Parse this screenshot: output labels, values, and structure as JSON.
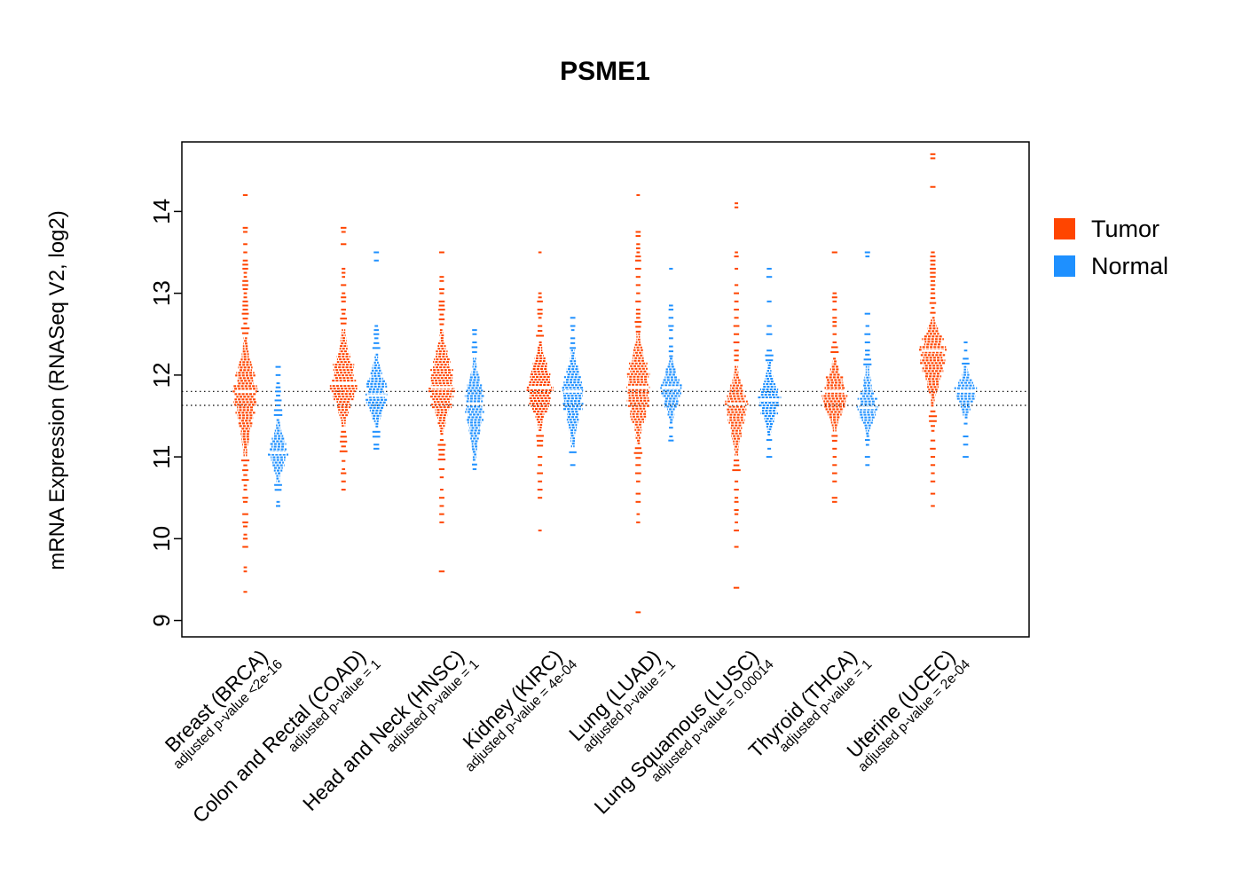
{
  "chart_data": {
    "type": "beeswarm-violin",
    "title": "PSME1",
    "ylabel": "mRNA Expression (RNASeq V2, log2)",
    "ylim": [
      8.8,
      14.85
    ],
    "yticks": [
      9,
      10,
      11,
      12,
      13,
      14
    ],
    "grid": false,
    "legend_position": "right",
    "legend_items": [
      {
        "label": "Tumor",
        "color": "#FF4500"
      },
      {
        "label": "Normal",
        "color": "#1E90FF"
      }
    ],
    "reference_lines": [
      11.8,
      11.63
    ],
    "cohorts": [
      {
        "label": "Breast (BRCA)",
        "pvalue_label": "adjusted p-value <2e-16",
        "tumor": {
          "median": 11.8,
          "bulk_low": 11.0,
          "bulk_high": 12.45,
          "tail_low": 10.7,
          "tail_high": 12.75,
          "max_halfwidth": 12,
          "outliers_high": [
            12.8,
            12.85,
            12.9,
            12.95,
            13.0,
            13.05,
            13.1,
            13.15,
            13.2,
            13.25,
            13.3,
            13.35,
            13.4,
            13.5,
            13.6,
            13.75,
            13.8,
            14.2
          ],
          "outliers_low": [
            10.65,
            10.6,
            10.5,
            10.45,
            10.3,
            10.2,
            10.15,
            10.05,
            10.0,
            9.9,
            9.65,
            9.6,
            9.35
          ]
        },
        "normal": {
          "median": 11.05,
          "bulk_low": 10.7,
          "bulk_high": 11.45,
          "tail_low": 10.55,
          "tail_high": 11.75,
          "max_halfwidth": 10,
          "outliers_high": [
            11.8,
            11.85,
            11.9,
            12.0,
            12.1
          ],
          "outliers_low": [
            10.45,
            10.4
          ]
        }
      },
      {
        "label": "Colon and Rectal (COAD)",
        "pvalue_label": "adjusted p-value = 1",
        "tumor": {
          "median": 11.9,
          "bulk_low": 11.35,
          "bulk_high": 12.55,
          "tail_low": 11.05,
          "tail_high": 12.75,
          "max_halfwidth": 13,
          "outliers_high": [
            12.8,
            12.9,
            12.95,
            13.0,
            13.1,
            13.2,
            13.25,
            13.3,
            13.6,
            13.75,
            13.8
          ],
          "outliers_low": [
            10.95,
            10.85,
            10.8,
            10.7,
            10.6
          ]
        },
        "normal": {
          "median": 11.75,
          "bulk_low": 11.35,
          "bulk_high": 12.25,
          "tail_low": 11.2,
          "tail_high": 12.45,
          "max_halfwidth": 11,
          "outliers_high": [
            12.5,
            12.55,
            12.6,
            13.4,
            13.5
          ],
          "outliers_low": [
            11.15,
            11.1
          ]
        }
      },
      {
        "label": "Head and Neck (HNSC)",
        "pvalue_label": "adjusted p-value = 1",
        "tumor": {
          "median": 11.85,
          "bulk_low": 11.25,
          "bulk_high": 12.55,
          "tail_low": 10.95,
          "tail_high": 12.8,
          "max_halfwidth": 13,
          "outliers_high": [
            12.85,
            12.9,
            13.0,
            13.05,
            13.15,
            13.2,
            13.5
          ],
          "outliers_low": [
            10.85,
            10.75,
            10.6,
            10.5,
            10.4,
            10.3,
            10.2,
            9.6
          ]
        },
        "normal": {
          "median": 11.65,
          "bulk_low": 10.95,
          "bulk_high": 12.2,
          "tail_low": 10.9,
          "tail_high": 12.4,
          "max_halfwidth": 10,
          "outliers_high": [
            12.5,
            12.55
          ],
          "outliers_low": [
            10.85
          ]
        }
      },
      {
        "label": "Kidney (KIRC)",
        "pvalue_label": "adjusted p-value = 4e-04",
        "tumor": {
          "median": 11.85,
          "bulk_low": 11.3,
          "bulk_high": 12.4,
          "tail_low": 11.1,
          "tail_high": 12.6,
          "max_halfwidth": 13,
          "outliers_high": [
            12.7,
            12.75,
            12.8,
            12.9,
            12.95,
            13.0,
            13.5
          ],
          "outliers_low": [
            11.0,
            10.9,
            10.8,
            10.7,
            10.6,
            10.5,
            10.1
          ]
        },
        "normal": {
          "median": 11.8,
          "bulk_low": 11.1,
          "bulk_high": 12.3,
          "tail_low": 11.0,
          "tail_high": 12.45,
          "max_halfwidth": 11,
          "outliers_high": [
            12.55,
            12.6,
            12.7
          ],
          "outliers_low": [
            10.9
          ]
        }
      },
      {
        "label": "Lung (LUAD)",
        "pvalue_label": "adjusted p-value = 1",
        "tumor": {
          "median": 11.85,
          "bulk_low": 11.15,
          "bulk_high": 12.5,
          "tail_low": 10.95,
          "tail_high": 12.65,
          "max_halfwidth": 13,
          "outliers_high": [
            12.7,
            12.75,
            12.8,
            12.9,
            13.0,
            13.1,
            13.2,
            13.3,
            13.4,
            13.45,
            13.5,
            13.55,
            13.6,
            13.7,
            13.75,
            14.2
          ],
          "outliers_low": [
            10.9,
            10.8,
            10.7,
            10.55,
            10.45,
            10.3,
            10.2,
            9.1
          ]
        },
        "normal": {
          "median": 11.85,
          "bulk_low": 11.4,
          "bulk_high": 12.2,
          "tail_low": 11.3,
          "tail_high": 12.35,
          "max_halfwidth": 11,
          "outliers_high": [
            12.45,
            12.55,
            12.6,
            12.7,
            12.8,
            12.85,
            13.3
          ],
          "outliers_low": [
            11.25,
            11.2
          ]
        }
      },
      {
        "label": "Lung Squamous (LUSC)",
        "pvalue_label": "adjusted p-value = 0.00014",
        "tumor": {
          "median": 11.65,
          "bulk_low": 11.0,
          "bulk_high": 12.1,
          "tail_low": 10.8,
          "tail_high": 12.3,
          "max_halfwidth": 11,
          "outliers_high": [
            12.4,
            12.5,
            12.6,
            12.7,
            12.8,
            12.9,
            13.0,
            13.1,
            13.3,
            13.45,
            13.5,
            14.05,
            14.1
          ],
          "outliers_low": [
            10.7,
            10.6,
            10.5,
            10.45,
            10.35,
            10.3,
            10.2,
            10.1,
            9.9,
            9.4
          ]
        },
        "normal": {
          "median": 11.7,
          "bulk_low": 11.25,
          "bulk_high": 12.15,
          "tail_low": 11.15,
          "tail_high": 12.3,
          "max_halfwidth": 11,
          "outliers_high": [
            12.5,
            12.6,
            12.9,
            13.2,
            13.3
          ],
          "outliers_low": [
            11.1,
            11.0
          ]
        }
      },
      {
        "label": "Thyroid (THCA)",
        "pvalue_label": "adjusted p-value = 1",
        "tumor": {
          "median": 11.8,
          "bulk_low": 11.3,
          "bulk_high": 12.2,
          "tail_low": 11.15,
          "tail_high": 12.4,
          "max_halfwidth": 13,
          "outliers_high": [
            12.5,
            12.6,
            12.65,
            12.7,
            12.8,
            12.9,
            12.95,
            13.0,
            13.5
          ],
          "outliers_low": [
            11.1,
            11.0,
            10.9,
            10.8,
            10.7,
            10.5,
            10.45
          ]
        },
        "normal": {
          "median": 11.6,
          "bulk_low": 11.25,
          "bulk_high": 12.1,
          "tail_low": 11.1,
          "tail_high": 12.25,
          "max_halfwidth": 10,
          "outliers_high": [
            12.3,
            12.4,
            12.5,
            12.6,
            12.75,
            13.45,
            13.5
          ],
          "outliers_low": [
            11.0,
            10.9
          ]
        }
      },
      {
        "label": "Uterine (UCEC)",
        "pvalue_label": "adjusted p-value = 2e-04",
        "tumor": {
          "median": 12.3,
          "bulk_low": 11.6,
          "bulk_high": 12.7,
          "tail_low": 11.3,
          "tail_high": 13.0,
          "max_halfwidth": 13,
          "outliers_high": [
            13.05,
            13.1,
            13.15,
            13.2,
            13.25,
            13.3,
            13.35,
            13.4,
            13.45,
            13.5,
            14.3,
            14.65,
            14.7
          ],
          "outliers_low": [
            11.2,
            11.1,
            11.0,
            10.9,
            10.8,
            10.7,
            10.55,
            10.4
          ]
        },
        "normal": {
          "median": 11.8,
          "bulk_low": 11.45,
          "bulk_high": 12.1,
          "tail_low": 11.35,
          "tail_high": 12.2,
          "max_halfwidth": 11,
          "outliers_high": [
            12.3,
            12.4
          ],
          "outliers_low": [
            11.25,
            11.15,
            11.0
          ]
        }
      }
    ]
  }
}
